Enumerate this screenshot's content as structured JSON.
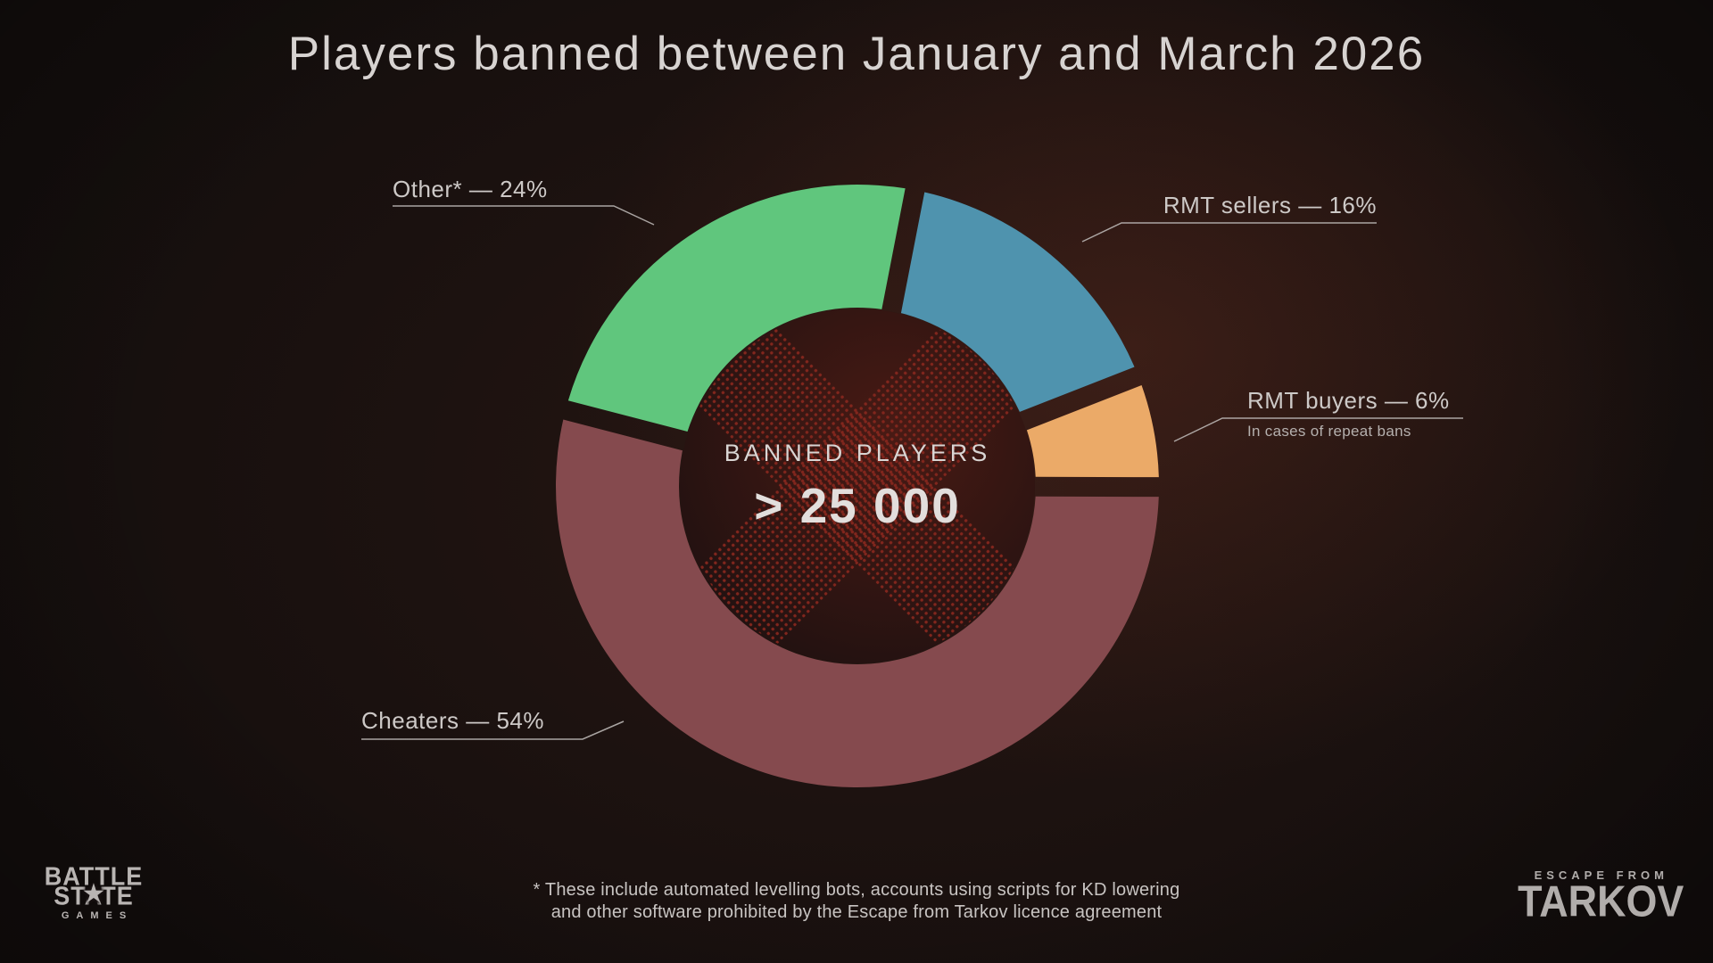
{
  "title": "Players banned between January and March 2026",
  "chart_data": {
    "type": "pie",
    "subtype": "donut",
    "title": "Players banned between January and March 2026",
    "center_label": "BANNED PLAYERS",
    "center_value": "> 25 000",
    "legend_position": "callout-labels",
    "start_angle_deg": 11,
    "order_clockwise_from_top": [
      "RMT sellers",
      "RMT buyers",
      "Cheaters",
      "Other"
    ],
    "segments": [
      {
        "name": "Cheaters",
        "label": "Cheaters — 54%",
        "value": 54,
        "color": "#854a4e"
      },
      {
        "name": "Other",
        "label": "Other* — 24%",
        "value": 24,
        "color": "#60c67d"
      },
      {
        "name": "RMT sellers",
        "label": "RMT sellers — 16%",
        "value": 16,
        "color": "#4f93ae"
      },
      {
        "name": "RMT buyers",
        "label": "RMT buyers — 6%",
        "value": 6,
        "color": "#ebaa68",
        "note": "In cases of repeat bans"
      }
    ]
  },
  "footnote": {
    "line1": "*  These include automated levelling bots, accounts using scripts for KD lowering",
    "line2": "and other software prohibited by the Escape from Tarkov licence agreement"
  },
  "logos": {
    "battlestate": {
      "line1": "BATTLE",
      "line2": "STATE",
      "star": "★",
      "line3": "GAMES"
    },
    "tarkov": {
      "line1": "ESCAPE FROM",
      "line2": "TARKOV"
    }
  },
  "colors": {
    "background": "#130e0d",
    "title_text": "#d7d3d1",
    "label_text": "#cdc9c7",
    "note_text": "#b5b0ae",
    "leader_line": "#b9b5b3",
    "center_x_dots": "#82261d",
    "hole_fill": "#1c1010"
  }
}
